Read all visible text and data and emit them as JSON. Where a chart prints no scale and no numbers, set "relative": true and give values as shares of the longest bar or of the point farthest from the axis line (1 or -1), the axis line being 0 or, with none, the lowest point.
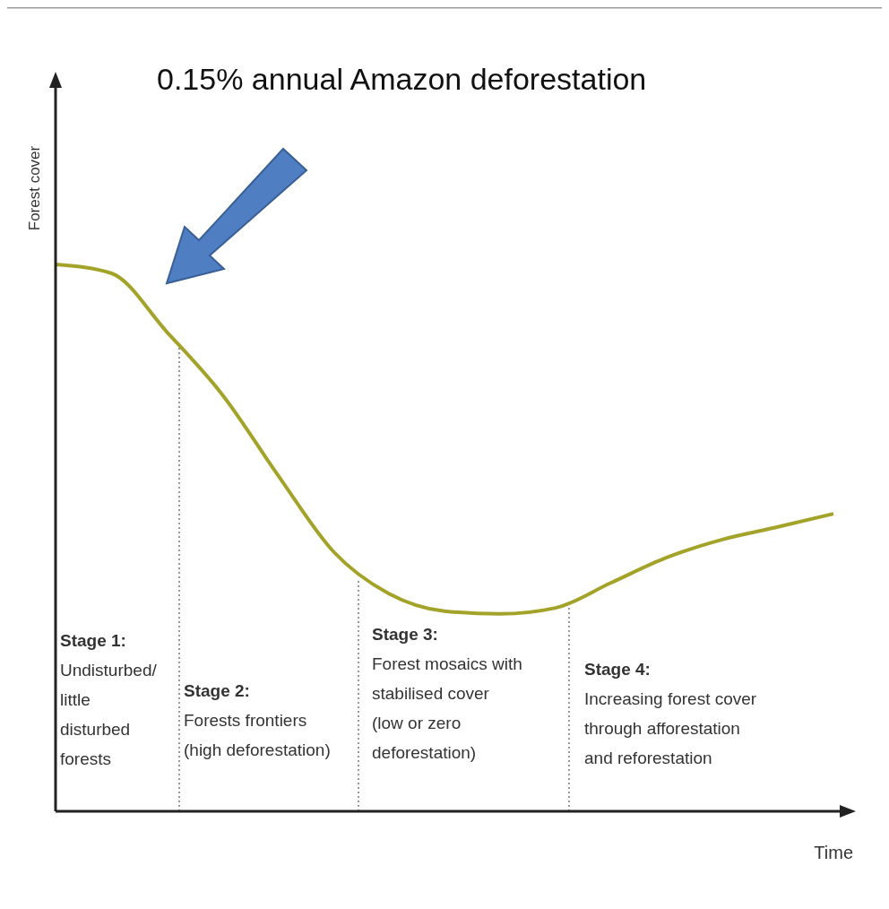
{
  "chart_data": {
    "type": "line",
    "relative": true,
    "xlabel": "Time",
    "ylabel": "Forest cover",
    "categories": [
      null,
      null,
      null,
      null,
      null,
      null,
      null,
      null,
      null,
      null,
      null,
      null,
      null,
      null,
      null
    ],
    "series": [
      {
        "color": "#a3a32a",
        "values": [
          1.0,
          0.984,
          0.877,
          0.762,
          0.615,
          0.475,
          0.398,
          0.366,
          0.361,
          0.372,
          0.418,
          0.464,
          0.497,
          0.52,
          0.544
        ]
      }
    ],
    "annotations": [
      "0.15% annual Amazon deforestation",
      "Stage 1:\nUndisturbed/\nlittle\ndisturbed\nforests",
      "Stage 2:\nForests frontiers\n(high deforestation)",
      "Stage 3:\nForest mosaics with\nstabilised cover\n(low or zero\ndeforestation)",
      "Stage 4:\nIncreasing forest cover\nthrough afforestation\nand reforestation"
    ],
    "marker": "none",
    "line_style": "solid"
  }
}
